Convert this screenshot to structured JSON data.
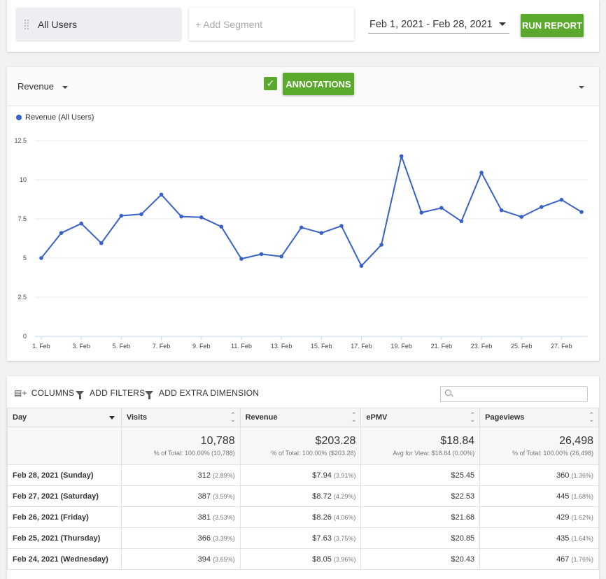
{
  "filters": {
    "segment_label": "All Users",
    "add_segment_placeholder": "+ Add Segment",
    "date_range": "Feb 1, 2021 - Feb 28, 2021",
    "run_report_label": "RUN REPORT"
  },
  "chart_header": {
    "metric": "Revenue",
    "annotations_label": "ANNOTATIONS",
    "annotations_checked": true
  },
  "chart_data": {
    "type": "line",
    "legend": "top-left",
    "grid": true,
    "ylim": [
      0,
      12.5
    ],
    "yticks": [
      "0",
      "2.5",
      "5",
      "7.5",
      "10",
      "12.5"
    ],
    "xtick_labels": [
      "1. Feb",
      "3. Feb",
      "5. Feb",
      "7. Feb",
      "9. Feb",
      "11. Feb",
      "13. Feb",
      "15. Feb",
      "17. Feb",
      "19. Feb",
      "21. Feb",
      "23. Feb",
      "25. Feb",
      "27. Feb"
    ],
    "series": [
      {
        "name": "Revenue (All Users)",
        "color": "#3862c7",
        "x": [
          1,
          2,
          3,
          4,
          5,
          6,
          7,
          8,
          9,
          10,
          11,
          12,
          13,
          14,
          15,
          16,
          17,
          18,
          19,
          20,
          21,
          22,
          23,
          24,
          25,
          26,
          27,
          28
        ],
        "values": [
          5.0,
          6.6,
          7.2,
          5.95,
          7.7,
          7.8,
          9.05,
          7.65,
          7.6,
          7.0,
          4.95,
          5.25,
          5.1,
          6.95,
          6.6,
          7.05,
          4.5,
          5.85,
          11.5,
          7.9,
          8.2,
          7.35,
          10.45,
          8.05,
          7.63,
          8.26,
          8.72,
          7.94
        ]
      }
    ]
  },
  "toolbar": {
    "columns_label": "COLUMNS",
    "add_filters_label": "ADD FILTERS",
    "add_dimension_label": "ADD EXTRA DIMENSION",
    "search_value": ""
  },
  "table": {
    "headers": [
      "Day",
      "Visits",
      "Revenue",
      "ePMV",
      "Pageviews"
    ],
    "totals": {
      "visits": {
        "value": "10,788",
        "sub": "% of Total: 100.00% (10,788)"
      },
      "revenue": {
        "value": "$203.28",
        "sub": "% of Total: 100.00% ($203.28)"
      },
      "epmv": {
        "value": "$18.84",
        "sub": "Avg for View: $18.84 (0.00%)"
      },
      "pageviews": {
        "value": "26,498",
        "sub": "% of Total: 100.00% (26,498)"
      }
    },
    "rows": [
      {
        "day": "Feb 28, 2021 (Sunday)",
        "visits": "312",
        "visits_pct": "(2.89%)",
        "revenue": "$7.94",
        "revenue_pct": "(3.91%)",
        "epmv": "$25.45",
        "pageviews": "360",
        "pageviews_pct": "(1.36%)"
      },
      {
        "day": "Feb 27, 2021 (Saturday)",
        "visits": "387",
        "visits_pct": "(3.59%)",
        "revenue": "$8.72",
        "revenue_pct": "(4.29%)",
        "epmv": "$22.53",
        "pageviews": "445",
        "pageviews_pct": "(1.68%)"
      },
      {
        "day": "Feb 26, 2021 (Friday)",
        "visits": "381",
        "visits_pct": "(3.53%)",
        "revenue": "$8.26",
        "revenue_pct": "(4.06%)",
        "epmv": "$21.68",
        "pageviews": "429",
        "pageviews_pct": "(1.62%)"
      },
      {
        "day": "Feb 25, 2021 (Thursday)",
        "visits": "366",
        "visits_pct": "(3.39%)",
        "revenue": "$7.63",
        "revenue_pct": "(3.75%)",
        "epmv": "$20.85",
        "pageviews": "435",
        "pageviews_pct": "(1.64%)"
      },
      {
        "day": "Feb 24, 2021 (Wednesday)",
        "visits": "394",
        "visits_pct": "(3.65%)",
        "revenue": "$8.05",
        "revenue_pct": "(3.96%)",
        "epmv": "$20.43",
        "pageviews": "467",
        "pageviews_pct": "(1.76%)"
      }
    ]
  }
}
